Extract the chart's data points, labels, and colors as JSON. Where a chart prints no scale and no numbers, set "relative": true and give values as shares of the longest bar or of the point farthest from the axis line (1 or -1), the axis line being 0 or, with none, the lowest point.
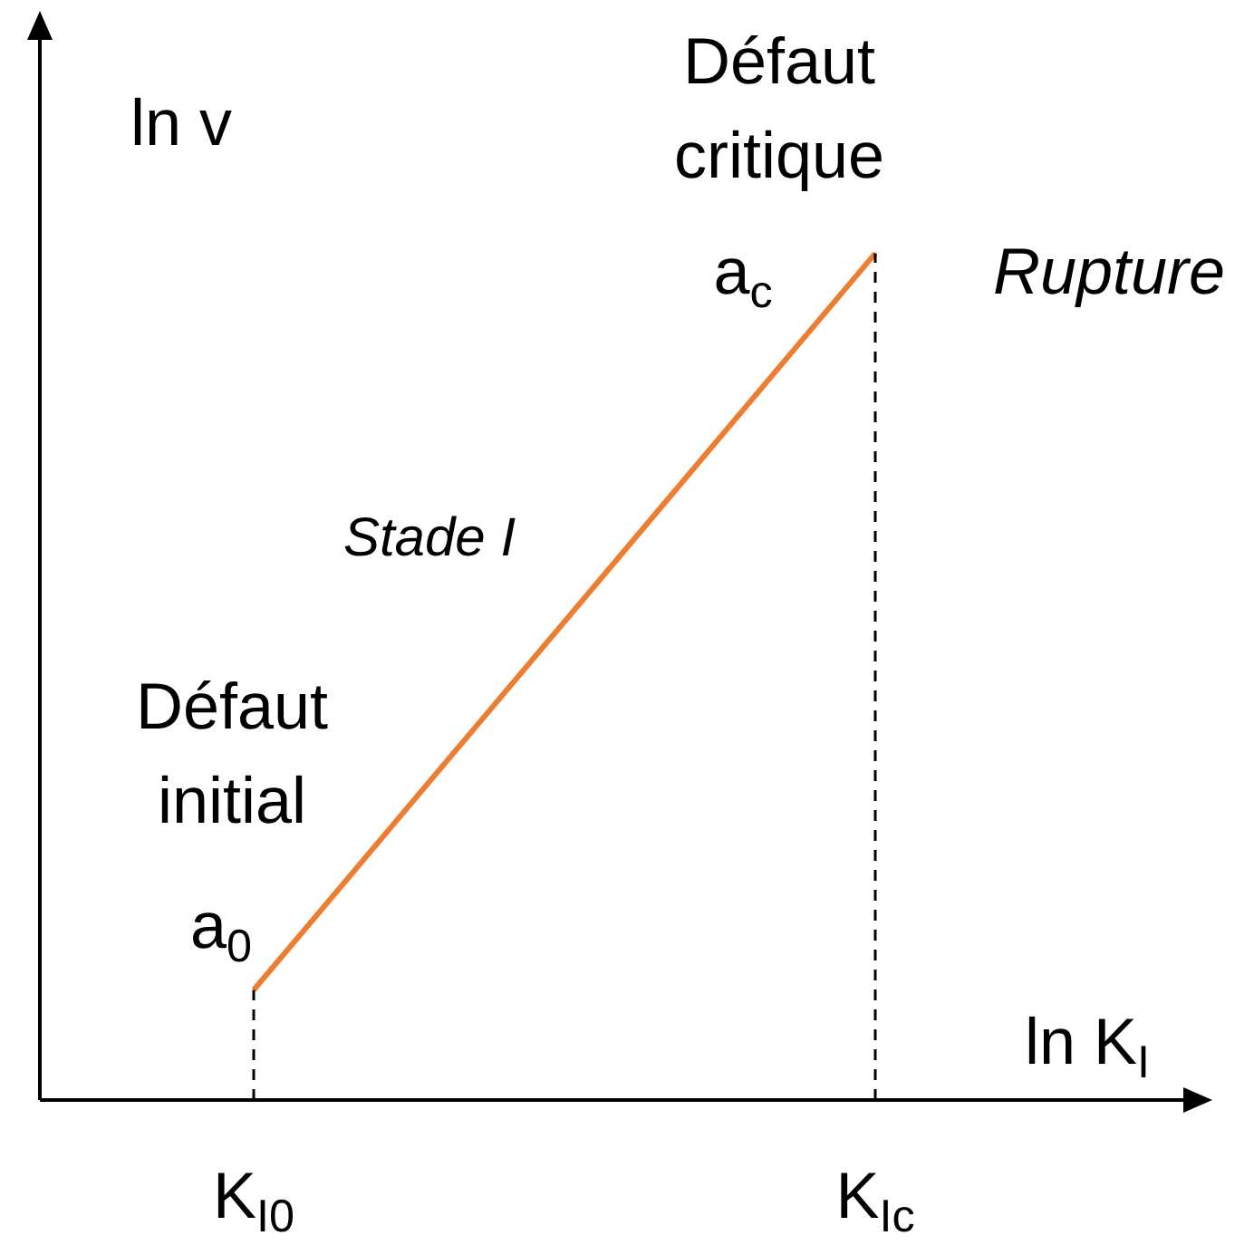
{
  "chart_data": {
    "type": "line",
    "relative": true,
    "xlabel": "ln K$_{I}$",
    "ylabel": "ln v",
    "categories": [
      "K$_{I0}$",
      "K$_{Ic}$"
    ],
    "series": [
      {
        "color": "#ed7d31",
        "values": [
          0.13,
          1
        ]
      }
    ],
    "marker": "none",
    "ref_lines": [
      {
        "axis": "x",
        "value": "K$_{I0}$",
        "color": "#000000",
        "line_style": "dashed"
      },
      {
        "axis": "x",
        "value": "K$_{Ic}$",
        "color": "#000000",
        "line_style": "dashed"
      }
    ],
    "annotations": [
      {
        "text": "Défaut initial",
        "x": "K$_{I0}$",
        "y": 0.13
      },
      {
        "text": "a$_{0}$",
        "x": "K$_{I0}$",
        "y": 0.13
      },
      {
        "text": "Défaut critique",
        "x": "K$_{Ic}$",
        "y": 1
      },
      {
        "text": "a$_{c}$",
        "x": "K$_{Ic}$",
        "y": 1
      },
      "Stade I",
      "Rupture"
    ]
  }
}
